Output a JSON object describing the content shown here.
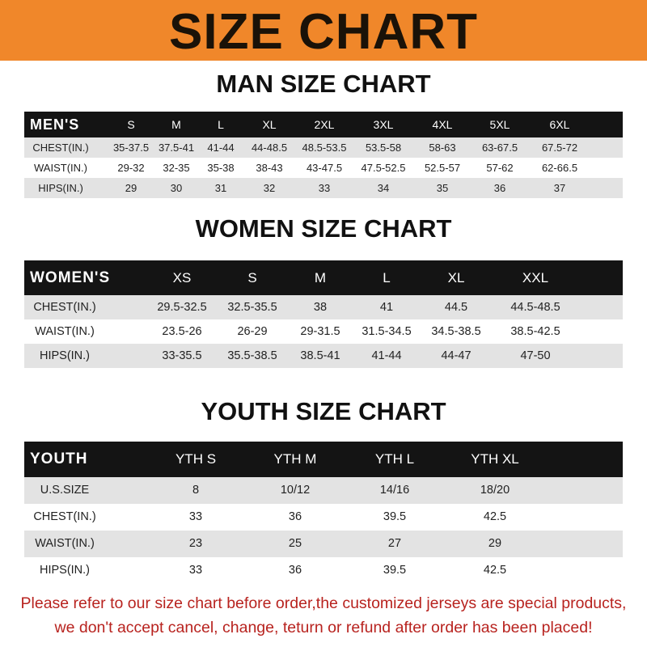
{
  "banner": {
    "title": "SIZE CHART",
    "color": "#f0872a"
  },
  "men": {
    "title": "MAN SIZE CHART",
    "header": [
      "MEN'S",
      "S",
      "M",
      "L",
      "XL",
      "2XL",
      "3XL",
      "4XL",
      "5XL",
      "6XL"
    ],
    "rows": [
      [
        "CHEST(IN.)",
        "35-37.5",
        "37.5-41",
        "41-44",
        "44-48.5",
        "48.5-53.5",
        "53.5-58",
        "58-63",
        "63-67.5",
        "67.5-72"
      ],
      [
        "WAIST(IN.)",
        "29-32",
        "32-35",
        "35-38",
        "38-43",
        "43-47.5",
        "47.5-52.5",
        "52.5-57",
        "57-62",
        "62-66.5"
      ],
      [
        "HIPS(IN.)",
        "29",
        "30",
        "31",
        "32",
        "33",
        "34",
        "35",
        "36",
        "37"
      ]
    ]
  },
  "women": {
    "title": "WOMEN SIZE CHART",
    "header": [
      "WOMEN'S",
      "XS",
      "S",
      "M",
      "L",
      "XL",
      "XXL"
    ],
    "rows": [
      [
        "CHEST(IN.)",
        "29.5-32.5",
        "32.5-35.5",
        "38",
        "41",
        "44.5",
        "44.5-48.5"
      ],
      [
        "WAIST(IN.)",
        "23.5-26",
        "26-29",
        "29-31.5",
        "31.5-34.5",
        "34.5-38.5",
        "38.5-42.5"
      ],
      [
        "HIPS(IN.)",
        "33-35.5",
        "35.5-38.5",
        "38.5-41",
        "41-44",
        "44-47",
        "47-50"
      ]
    ]
  },
  "youth": {
    "title": "YOUTH SIZE CHART",
    "header": [
      "YOUTH",
      "YTH S",
      "YTH M",
      "YTH L",
      "YTH XL"
    ],
    "rows": [
      [
        "U.S.SIZE",
        "8",
        "10/12",
        "14/16",
        "18/20"
      ],
      [
        "CHEST(IN.)",
        "33",
        "36",
        "39.5",
        "42.5"
      ],
      [
        "WAIST(IN.)",
        "23",
        "25",
        "27",
        "29"
      ],
      [
        "HIPS(IN.)",
        "33",
        "36",
        "39.5",
        "42.5"
      ]
    ]
  },
  "footer": {
    "line1": "Please refer to our size chart before order,the customized jerseys are special products,",
    "line2": "we don't accept cancel, change, teturn or refund after order has been placed!",
    "color": "#b8231f"
  }
}
